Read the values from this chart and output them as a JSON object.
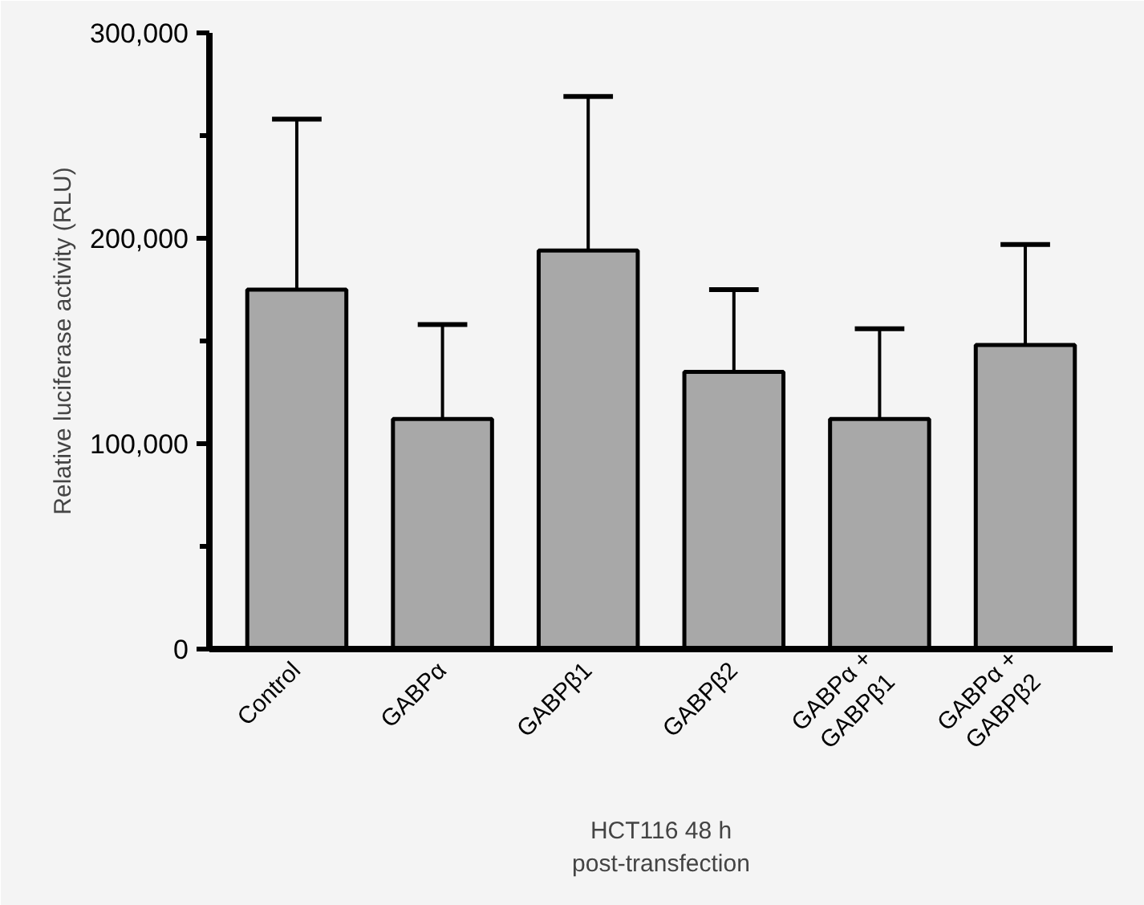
{
  "chart_data": {
    "type": "bar",
    "xlabel": "HCT116 48 h\npost-transfection",
    "ylabel": "Relative luciferase activity (RLU)",
    "categories": [
      "Control",
      "GABPα",
      "GABPβ1",
      "GABPβ2",
      "GABPα +\nGABPβ1",
      "GABPα +\nGABPβ2"
    ],
    "values": [
      175000,
      112000,
      194000,
      135000,
      112000,
      148000
    ],
    "errors": [
      [
        175000,
        258000
      ],
      [
        112000,
        158000
      ],
      [
        194000,
        269000
      ],
      [
        135000,
        175000
      ],
      [
        112000,
        156000
      ],
      [
        148000,
        197000
      ]
    ],
    "color": "#a8a8a8",
    "ylim": [
      0,
      300000
    ],
    "yticks": [
      {
        "value": 0,
        "label": "0"
      },
      {
        "value": 100000,
        "label": "100,000"
      },
      {
        "value": 200000,
        "label": "200,000"
      },
      {
        "value": 300000,
        "label": "300,000"
      }
    ],
    "grid": false
  }
}
